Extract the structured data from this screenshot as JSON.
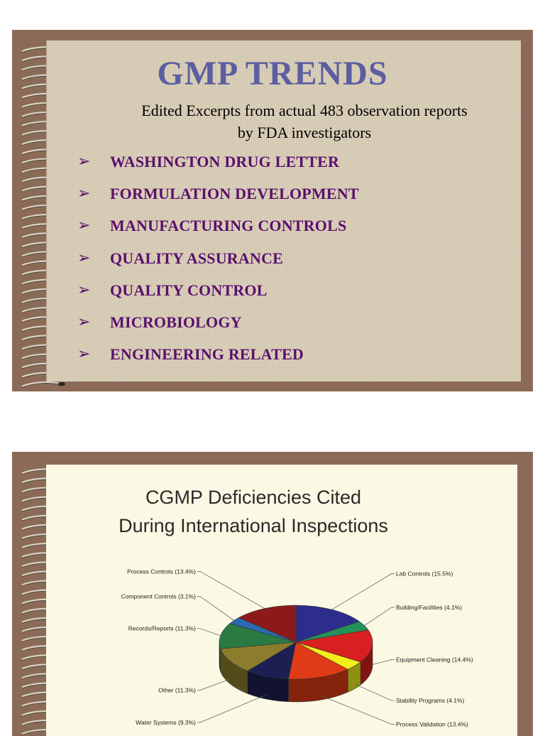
{
  "slide1": {
    "title": "GMP TRENDS",
    "subtitle_line1": "Edited Excerpts from actual 483 observation reports",
    "subtitle_line2": "by FDA investigators",
    "bullet_glyph": "➢",
    "items": [
      "WASHINGTON DRUG LETTER",
      "FORMULATION DEVELOPMENT",
      "MANUFACTURING CONTROLS",
      "QUALITY ASSURANCE",
      "QUALITY CONTROL",
      "MICROBIOLOGY",
      "ENGINEERING RELATED"
    ],
    "colors": {
      "title": "#5b5e9f",
      "items": "#5a0f6e",
      "frame": "#8b6b57",
      "paper": "#d8cdb6"
    }
  },
  "slide2": {
    "title_line1": "CGMP Deficiencies Cited",
    "title_line2": "During International Inspections",
    "colors": {
      "frame": "#8b6b57",
      "paper": "#fbf9e3"
    }
  },
  "chart_data": {
    "type": "pie",
    "title": "CGMP Deficiencies Cited During International Inspections",
    "slices": [
      {
        "label": "Lab Controls",
        "display": "Lab Controls  (15.5%)",
        "value": 15.5,
        "color": "#2c2d8c"
      },
      {
        "label": "Building/Facilities",
        "display": "Building/Facilities (4.1%)",
        "value": 4.1,
        "color": "#25915a"
      },
      {
        "label": "Equipment Cleaning",
        "display": "Equipment Cleaning (14.4%)",
        "value": 14.4,
        "color": "#d92020"
      },
      {
        "label": "Stability Programs",
        "display": "Stability Programs (4.1%)",
        "value": 4.1,
        "color": "#f2ee1c"
      },
      {
        "label": "Process Validation",
        "display": "Process Validation (13.4%)",
        "value": 13.4,
        "color": "#e03a16"
      },
      {
        "label": "Water Systems",
        "display": "Water Systems (9.3%)",
        "value": 9.3,
        "color": "#1c1f52"
      },
      {
        "label": "Other",
        "display": "Other (11.3%)",
        "value": 11.3,
        "color": "#8c7d2c"
      },
      {
        "label": "Records/Reports",
        "display": "Records/Reports (11.3%)",
        "value": 11.3,
        "color": "#2b7a44"
      },
      {
        "label": "Component Controls",
        "display": "Component Controls (3.1%)",
        "value": 3.1,
        "color": "#2a6ab0"
      },
      {
        "label": "Process Controls",
        "display": "Process Controls (13.4%)",
        "value": 13.4,
        "color": "#8c1a1a"
      }
    ]
  }
}
